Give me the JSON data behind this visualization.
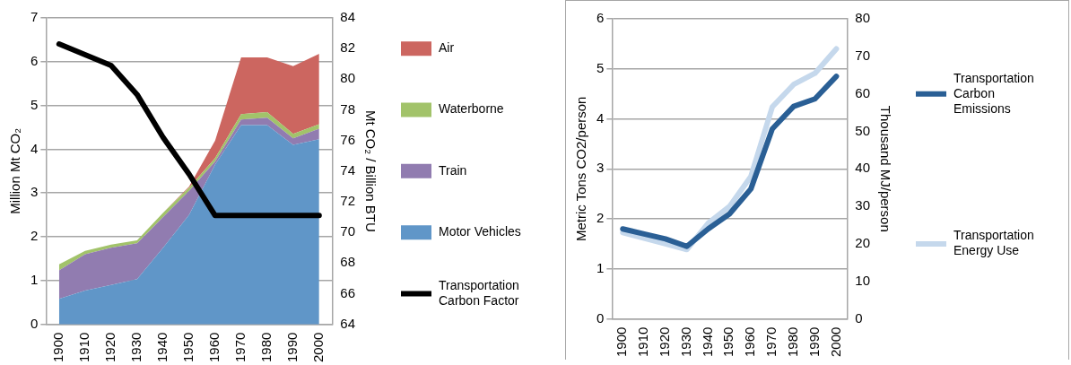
{
  "chart_data": [
    {
      "type": "area",
      "stacked": true,
      "categories": [
        "1900",
        "1910",
        "1920",
        "1930",
        "1940",
        "1950",
        "1960",
        "1970",
        "1980",
        "1990",
        "2000"
      ],
      "ylabel": "Million Mt CO₂",
      "y2label": "Mt CO₂ / Billion BTU",
      "ylim": [
        0,
        7
      ],
      "yticks": [
        0,
        1,
        2,
        3,
        4,
        5,
        6,
        7
      ],
      "y2lim": [
        64,
        84
      ],
      "y2ticks": [
        64,
        66,
        68,
        70,
        72,
        74,
        76,
        78,
        80,
        82,
        84
      ],
      "grid": "y",
      "legend": "right",
      "series": [
        {
          "name": "Motor Vehicles",
          "color": "#6096c8",
          "values": [
            0.58,
            0.77,
            0.9,
            1.03,
            1.75,
            2.5,
            3.65,
            4.55,
            4.55,
            4.1,
            4.23
          ]
        },
        {
          "name": "Train",
          "color": "#917cb0",
          "values": [
            0.65,
            0.83,
            0.85,
            0.82,
            0.7,
            0.55,
            0.07,
            0.13,
            0.17,
            0.15,
            0.24
          ]
        },
        {
          "name": "Waterborne",
          "color": "#a2c36a",
          "values": [
            0.14,
            0.08,
            0.07,
            0.07,
            0.1,
            0.07,
            0.08,
            0.12,
            0.13,
            0.1,
            0.1
          ]
        },
        {
          "name": "Air",
          "color": "#cc6660",
          "values": [
            null,
            null,
            null,
            null,
            0,
            0.03,
            0.4,
            1.3,
            1.25,
            1.55,
            1.61
          ]
        },
        {
          "name": "Transportation Carbon Factor",
          "color": "#000000",
          "type": "line",
          "axis": "y2",
          "values": [
            82.3,
            81.6,
            80.9,
            79,
            76.2,
            73.8,
            71.1,
            71.1,
            71.1,
            71.1,
            71.1
          ]
        }
      ]
    },
    {
      "type": "line",
      "categories": [
        "1900",
        "1910",
        "1920",
        "1930",
        "1940",
        "1950",
        "1960",
        "1970",
        "1980",
        "1990",
        "2000"
      ],
      "ylabel": "Metric Tons CO2/person",
      "y2label": "Thousand MJ/person",
      "ylim": [
        0,
        6
      ],
      "yticks": [
        0,
        1,
        2,
        3,
        4,
        5,
        6
      ],
      "y2lim": [
        0,
        80
      ],
      "y2ticks": [
        0,
        10,
        20,
        30,
        40,
        50,
        60,
        70,
        80
      ],
      "grid": "y",
      "legend": "right",
      "series": [
        {
          "name": "Transportation Carbon Emissions",
          "color": "#2a5f95",
          "values": [
            1.8,
            1.7,
            1.6,
            1.45,
            1.8,
            2.1,
            2.6,
            3.8,
            4.25,
            4.4,
            4.85
          ]
        },
        {
          "name": "Transportation Energy Use",
          "color": "#c5d8ec",
          "axis": "y2",
          "values": [
            23,
            21.5,
            20,
            18.5,
            25.5,
            30,
            38,
            56.5,
            62.5,
            65.5,
            72
          ]
        }
      ]
    }
  ]
}
